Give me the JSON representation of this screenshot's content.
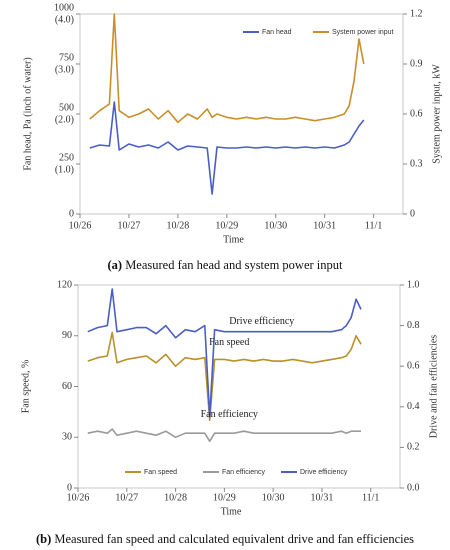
{
  "chart_data": [
    {
      "type": "line",
      "y_label": "Fan head, Pa (inch of water)",
      "y2_label": "System power input, kW",
      "x_label": "Time",
      "caption_label": "(a)",
      "caption": "Measured fan head and system power input",
      "legend": "top-right",
      "xlim": [
        0,
        6.6
      ],
      "xticks": [
        {
          "value": 0,
          "label": "10/26"
        },
        {
          "value": 1,
          "label": "10/27"
        },
        {
          "value": 2,
          "label": "10/28"
        },
        {
          "value": 3,
          "label": "10/29"
        },
        {
          "value": 4,
          "label": "10/30"
        },
        {
          "value": 5,
          "label": "10/31"
        },
        {
          "value": 6,
          "label": "11/1"
        }
      ],
      "ylim": [
        0,
        1000
      ],
      "yticks": [
        {
          "value": 0,
          "label": "0",
          "label2": ""
        },
        {
          "value": 250,
          "label": "250",
          "label2": "(1.0)"
        },
        {
          "value": 500,
          "label": "500",
          "label2": "(2.0)"
        },
        {
          "value": 750,
          "label": "750",
          "label2": "(3.0)"
        },
        {
          "value": 1000,
          "label": "1000",
          "label2": "(4.0)"
        }
      ],
      "y2lim": [
        0,
        1.2
      ],
      "y2ticks": [
        0,
        0.3,
        0.6,
        0.9,
        1.2
      ],
      "x": [
        0.2,
        0.4,
        0.6,
        0.7,
        0.8,
        1.0,
        1.2,
        1.4,
        1.6,
        1.8,
        2.0,
        2.2,
        2.4,
        2.6,
        2.7,
        2.8,
        3.0,
        3.2,
        3.4,
        3.6,
        3.8,
        4.0,
        4.2,
        4.4,
        4.6,
        4.8,
        5.0,
        5.2,
        5.4,
        5.5,
        5.6,
        5.7,
        5.8
      ],
      "series": [
        {
          "name": "Fan head",
          "color": "#4a5ec4",
          "axis": "y",
          "values": [
            330,
            345,
            340,
            560,
            320,
            350,
            335,
            345,
            330,
            360,
            320,
            340,
            335,
            330,
            100,
            335,
            330,
            330,
            335,
            330,
            335,
            330,
            335,
            330,
            335,
            330,
            335,
            330,
            345,
            360,
            400,
            440,
            470
          ]
        },
        {
          "name": "System power input",
          "color": "#c98e2a",
          "axis": "y2",
          "values": [
            0.57,
            0.62,
            0.66,
            1.2,
            0.62,
            0.58,
            0.6,
            0.63,
            0.57,
            0.62,
            0.55,
            0.6,
            0.57,
            0.63,
            0.58,
            0.6,
            0.58,
            0.57,
            0.58,
            0.57,
            0.58,
            0.57,
            0.57,
            0.58,
            0.57,
            0.56,
            0.57,
            0.58,
            0.6,
            0.65,
            0.8,
            1.05,
            0.9
          ]
        }
      ],
      "annotations": []
    },
    {
      "type": "line",
      "y_label": "Fan speed, %",
      "y2_label": "Drive and fan efficiencies",
      "x_label": "Time",
      "caption_label": "(b)",
      "caption": "Measured fan speed and calculated equivalent drive and fan efficiencies",
      "legend": "bottom",
      "xlim": [
        0,
        6.6
      ],
      "xticks": [
        {
          "value": 0,
          "label": "10/26"
        },
        {
          "value": 1,
          "label": "10/27"
        },
        {
          "value": 2,
          "label": "10/28"
        },
        {
          "value": 3,
          "label": "10/29"
        },
        {
          "value": 4,
          "label": "10/30"
        },
        {
          "value": 5,
          "label": "10/31"
        },
        {
          "value": 6,
          "label": "11/1"
        }
      ],
      "ylim": [
        0,
        120
      ],
      "yticks": [
        0,
        30,
        60,
        90,
        120
      ],
      "y2lim": [
        0,
        1
      ],
      "y2ticks": [
        {
          "value": 0,
          "label": "0.0"
        },
        0.2,
        0.4,
        0.6,
        0.8,
        {
          "value": 1,
          "label": "1.0"
        }
      ],
      "x": [
        0.2,
        0.4,
        0.6,
        0.7,
        0.8,
        1.0,
        1.2,
        1.4,
        1.6,
        1.8,
        2.0,
        2.2,
        2.4,
        2.6,
        2.7,
        2.8,
        3.0,
        3.2,
        3.4,
        3.6,
        3.8,
        4.0,
        4.2,
        4.4,
        4.6,
        4.8,
        5.0,
        5.2,
        5.4,
        5.5,
        5.6,
        5.7,
        5.8
      ],
      "series": [
        {
          "name": "Fan speed",
          "color": "#b8912c",
          "axis": "y",
          "values": [
            75,
            77,
            78,
            92,
            74,
            76,
            77,
            78,
            74,
            79,
            72,
            77,
            76,
            77,
            40,
            76,
            76,
            75,
            76,
            75,
            76,
            75,
            75,
            76,
            75,
            74,
            75,
            76,
            77,
            78,
            82,
            90,
            85
          ]
        },
        {
          "name": "Fan efficiency",
          "color": "#9a9a9a",
          "axis": "y2",
          "values": [
            0.27,
            0.28,
            0.27,
            0.29,
            0.26,
            0.27,
            0.28,
            0.27,
            0.26,
            0.28,
            0.25,
            0.27,
            0.27,
            0.27,
            0.23,
            0.27,
            0.27,
            0.27,
            0.28,
            0.27,
            0.27,
            0.27,
            0.27,
            0.27,
            0.27,
            0.27,
            0.27,
            0.27,
            0.28,
            0.27,
            0.28,
            0.28,
            0.28
          ]
        },
        {
          "name": "Drive efficiency",
          "color": "#4a5ec4",
          "axis": "y2",
          "values": [
            0.77,
            0.79,
            0.8,
            0.98,
            0.77,
            0.78,
            0.79,
            0.79,
            0.76,
            0.8,
            0.74,
            0.78,
            0.77,
            0.8,
            0.35,
            0.78,
            0.77,
            0.77,
            0.77,
            0.77,
            0.77,
            0.77,
            0.77,
            0.77,
            0.77,
            0.77,
            0.77,
            0.77,
            0.78,
            0.8,
            0.84,
            0.93,
            0.88
          ]
        }
      ],
      "annotations": [
        "Drive efficiency",
        "Fan speed",
        "Fan efficiency"
      ]
    }
  ]
}
